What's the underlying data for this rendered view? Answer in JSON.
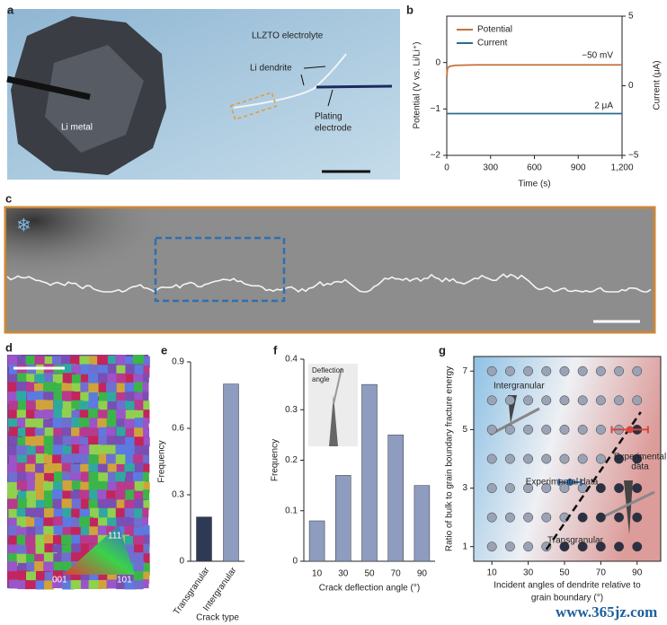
{
  "panels": {
    "a": {
      "letter": "a",
      "labels": [
        "LLZTO electrolyte",
        "Li dendrite",
        "Li metal",
        "Plating",
        "electrode"
      ]
    },
    "c": {
      "letter": "c"
    },
    "d": {
      "letter": "d",
      "labels": [
        "111",
        "001",
        "101"
      ]
    }
  },
  "watermark": "www.365jz.com",
  "chart_data": [
    {
      "type": "line",
      "panel": "b",
      "xlabel": "Time (s)",
      "ylabel": "Potential (V vs. Li/Li⁺)",
      "y2label": "Current (μA)",
      "x": [
        0,
        5,
        20,
        60,
        200,
        600,
        1200
      ],
      "series": [
        {
          "name": "Potential",
          "color": "#c8703a",
          "values": [
            -0.3,
            -0.12,
            -0.08,
            -0.06,
            -0.05,
            -0.05,
            -0.05
          ]
        },
        {
          "name": "Current",
          "color": "#2a6b8f",
          "axis": "y2",
          "values": [
            -2,
            -2,
            -2,
            -2,
            -2,
            -2,
            -2
          ]
        }
      ],
      "xlim": [
        0,
        1200
      ],
      "xticks": [
        0,
        300,
        600,
        900,
        {
          "value": 1200,
          "label": "1,200"
        }
      ],
      "ylim": [
        -2,
        1
      ],
      "yticks": [
        {
          "value": -2,
          "label": "−2"
        },
        {
          "value": -1,
          "label": "−1"
        },
        0
      ],
      "y2lim": [
        -5,
        5
      ],
      "y2ticks": [
        {
          "value": -5,
          "label": "−5"
        },
        0,
        5
      ],
      "annotations": [
        "−50 mV",
        "2 μA"
      ]
    },
    {
      "type": "bar",
      "panel": "e",
      "xlabel": "Crack type",
      "ylabel": "Frequency",
      "categories": [
        "Transgranular",
        "Intergranular"
      ],
      "values": [
        0.2,
        0.8
      ],
      "colors": [
        "#2e3a55",
        "#8e9cc0"
      ],
      "ylim": [
        0,
        0.9
      ],
      "yticks": [
        0,
        0.3,
        0.6,
        0.9
      ]
    },
    {
      "type": "bar",
      "panel": "f",
      "xlabel": "Crack deflection angle (°)",
      "ylabel": "Frequency",
      "categories": [
        "10",
        "30",
        "50",
        "70",
        "90"
      ],
      "values": [
        0.08,
        0.17,
        0.35,
        0.25,
        0.15
      ],
      "colors": [
        "#8e9cc0",
        "#8e9cc0",
        "#8e9cc0",
        "#8e9cc0",
        "#8e9cc0"
      ],
      "ylim": [
        0,
        0.4
      ],
      "yticks": [
        0,
        0.1,
        0.2,
        0.3,
        0.4
      ],
      "inset_label": [
        "Deflection",
        "angle"
      ]
    },
    {
      "type": "scatter",
      "panel": "g",
      "xlabel": [
        "Incident angles of dendrite relative to",
        "grain boundary (°)"
      ],
      "ylabel": "Ratio of bulk to grain boundary fracture energy",
      "xlim": [
        0,
        103
      ],
      "xticks": [
        10,
        30,
        50,
        70,
        90
      ],
      "ylim": [
        0.5,
        7.5
      ],
      "yticks": [
        1,
        3,
        5,
        7
      ],
      "series": [
        {
          "name": "Intergranular",
          "color": "#9aa3b5",
          "x": [
            10,
            20,
            30,
            40,
            50,
            60,
            70,
            80,
            90,
            10,
            20,
            30,
            40,
            50,
            60,
            70,
            80,
            90,
            10,
            20,
            30,
            40,
            50,
            60,
            70,
            80,
            10,
            20,
            30,
            40,
            50,
            60,
            70,
            10,
            20,
            30,
            40,
            50,
            60,
            10,
            20,
            30,
            40,
            50,
            10,
            20,
            30,
            40
          ],
          "y": [
            7,
            7,
            7,
            7,
            7,
            7,
            7,
            7,
            7,
            6,
            6,
            6,
            6,
            6,
            6,
            6,
            6,
            6,
            5,
            5,
            5,
            5,
            5,
            5,
            5,
            5,
            4,
            4,
            4,
            4,
            4,
            4,
            4,
            3,
            3,
            3,
            3,
            3,
            3,
            2,
            2,
            2,
            2,
            2,
            1,
            1,
            1,
            1
          ]
        },
        {
          "name": "Transgranular",
          "color": "#2b3042",
          "x": [
            50,
            60,
            60,
            70,
            70,
            70,
            80,
            80,
            80,
            80,
            90,
            90,
            90,
            90,
            90
          ],
          "y": [
            1,
            1,
            2,
            1,
            2,
            3,
            1,
            2,
            3,
            4,
            1,
            2,
            3,
            4,
            5
          ]
        }
      ],
      "boundary": {
        "x": [
          40,
          92
        ],
        "y": [
          0.9,
          5.6
        ]
      },
      "experimental": [
        {
          "x": 86,
          "y": 5,
          "xerr": 10,
          "color": "#d9463e",
          "label": [
            "Experimental",
            "data"
          ]
        },
        {
          "x": 53,
          "y": 3.2,
          "xerr": 6,
          "color": "#2f6fb0",
          "label": [
            "Experimental data"
          ]
        }
      ]
    }
  ]
}
